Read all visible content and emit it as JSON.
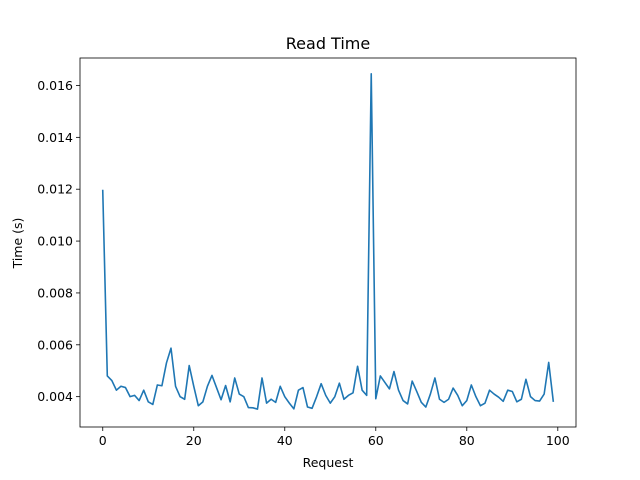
{
  "chart_data": {
    "type": "line",
    "title": "Read Time",
    "xlabel": "Request",
    "ylabel": "Time (s)",
    "xlim": [
      -5,
      104
    ],
    "ylim": [
      0.00283,
      0.01706
    ],
    "x_ticks": [
      0,
      20,
      40,
      60,
      80,
      100
    ],
    "y_ticks": [
      0.004,
      0.006,
      0.008,
      0.01,
      0.012,
      0.014,
      0.016
    ],
    "y_tick_labels": [
      "0.004",
      "0.006",
      "0.008",
      "0.010",
      "0.012",
      "0.014",
      "0.016"
    ],
    "grid": false,
    "series_color": "#1f77b4",
    "series": [
      {
        "values": [
          0.01195,
          0.0048,
          0.00462,
          0.00425,
          0.0044,
          0.00435,
          0.004,
          0.00405,
          0.00385,
          0.00425,
          0.0038,
          0.0037,
          0.00445,
          0.00442,
          0.0053,
          0.00587,
          0.0044,
          0.004,
          0.0039,
          0.0052,
          0.0044,
          0.00365,
          0.0038,
          0.0044,
          0.00482,
          0.00435,
          0.00388,
          0.00443,
          0.0038,
          0.00472,
          0.0041,
          0.004,
          0.00358,
          0.00357,
          0.00352,
          0.00472,
          0.00375,
          0.0039,
          0.00378,
          0.0044,
          0.004,
          0.00375,
          0.00353,
          0.00425,
          0.00435,
          0.0036,
          0.00355,
          0.004,
          0.0045,
          0.00405,
          0.00375,
          0.004,
          0.00452,
          0.0039,
          0.00405,
          0.00415,
          0.00517,
          0.00425,
          0.00405,
          0.01645,
          0.00392,
          0.0048,
          0.00455,
          0.0043,
          0.00497,
          0.00425,
          0.00385,
          0.00372,
          0.0046,
          0.0042,
          0.00378,
          0.0036,
          0.0041,
          0.00472,
          0.0039,
          0.00378,
          0.0039,
          0.00433,
          0.00405,
          0.00365,
          0.00385,
          0.00445,
          0.004,
          0.00365,
          0.00375,
          0.00425,
          0.0041,
          0.00398,
          0.00382,
          0.00425,
          0.0042,
          0.0038,
          0.0039,
          0.00467,
          0.004,
          0.00385,
          0.00383,
          0.0041,
          0.00532,
          0.00383
        ]
      }
    ]
  }
}
